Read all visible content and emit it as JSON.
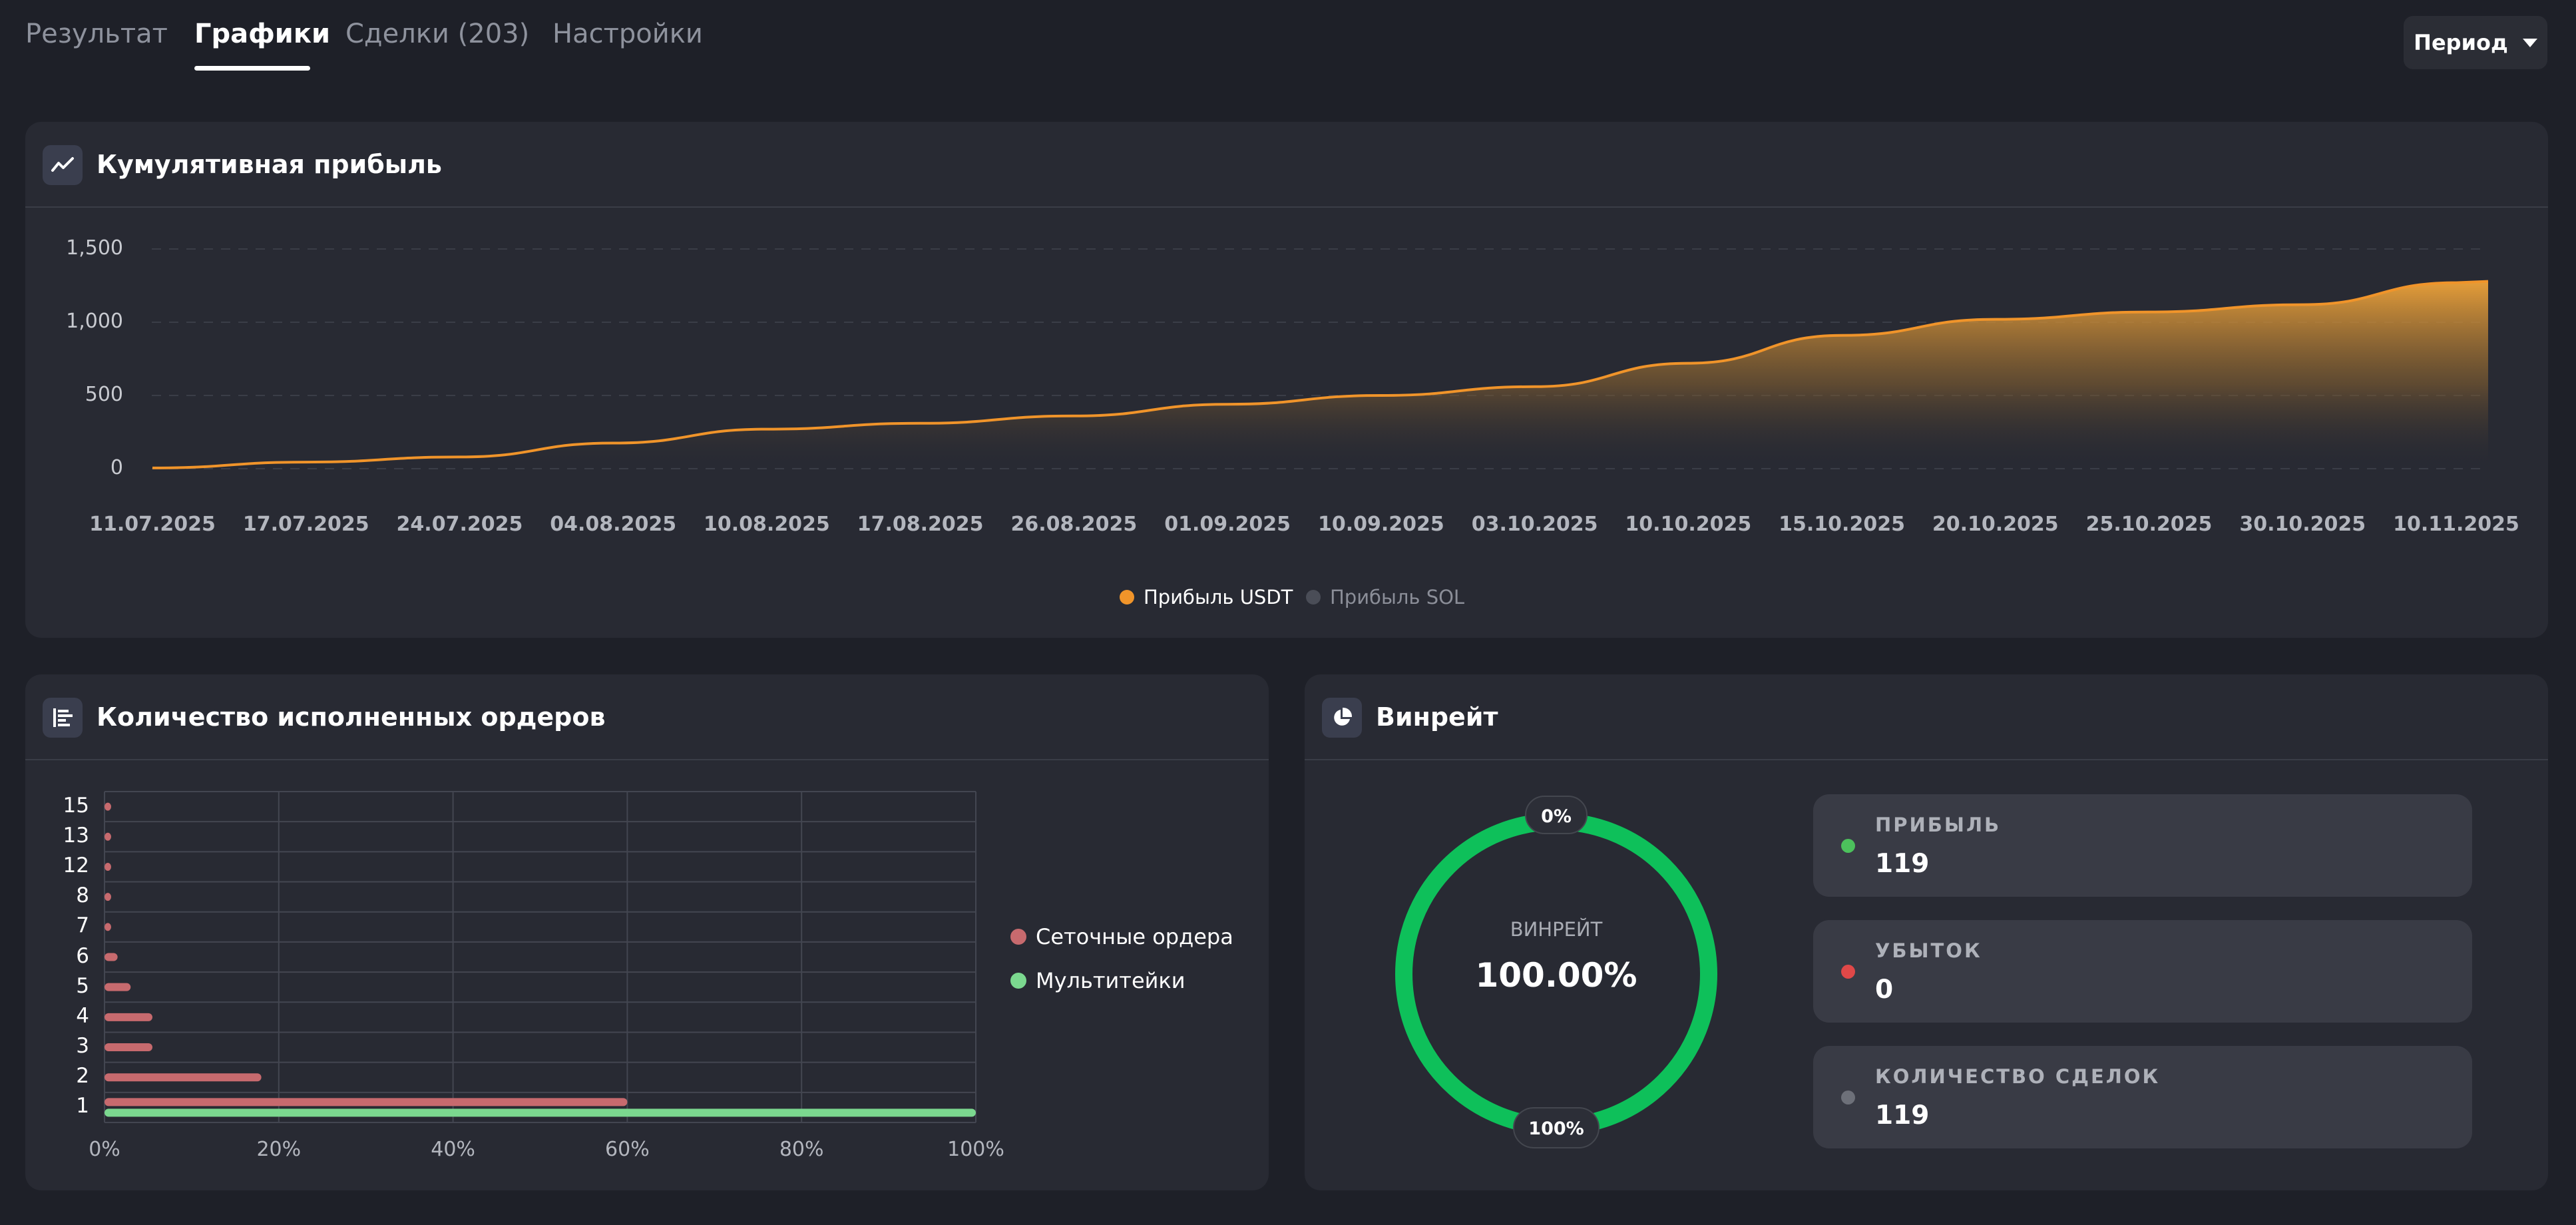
{
  "tabs": [
    {
      "label": "Результат"
    },
    {
      "label": "Графики"
    },
    {
      "label": "Сделки (203)"
    },
    {
      "label": "Настройки"
    }
  ],
  "active_tab": "Графики",
  "period_button": {
    "label": "Период"
  },
  "colors": {
    "accent_orange": "#f0942a",
    "bar_red": "#c76a6e",
    "bar_green": "#7bd88f",
    "win_green": "#0ec05a",
    "loss_red": "#e04848",
    "neutral_gray": "#6d7079"
  },
  "cumulative_panel": {
    "title": "Кумулятивная прибыль",
    "icon": "trend-line-icon",
    "legend": [
      {
        "label": "Прибыль USDT",
        "color": "#f0942a",
        "active": true
      },
      {
        "label": "Прибыль SOL",
        "color": "#4a4d57",
        "active": false
      }
    ]
  },
  "orders_panel": {
    "title": "Количество исполненных ордеров",
    "icon": "bar-list-icon",
    "legend": [
      {
        "label": "Сеточные ордера",
        "color": "#c76a6e"
      },
      {
        "label": "Мультитейки",
        "color": "#7bd88f"
      }
    ]
  },
  "winrate_panel": {
    "title": "Винрейт",
    "icon": "pie-chart-icon",
    "center_label": "ВИНРЕЙТ",
    "center_value": "100.00%",
    "top_badge": "0%",
    "bottom_badge": "100%",
    "stats": [
      {
        "label": "ПРИБЫЛЬ",
        "value": "119",
        "color": "#4cc15c"
      },
      {
        "label": "УБЫТОК",
        "value": "0",
        "color": "#e04848"
      },
      {
        "label": "КОЛИЧЕСТВО СДЕЛОК",
        "value": "119",
        "color": "#6d7079"
      }
    ]
  },
  "chart_data": [
    {
      "type": "area",
      "title": "Кумулятивная прибыль",
      "x_tick_labels": [
        "11.07.2025",
        "17.07.2025",
        "24.07.2025",
        "04.08.2025",
        "10.08.2025",
        "17.08.2025",
        "26.08.2025",
        "01.09.2025",
        "10.09.2025",
        "03.10.2025",
        "10.10.2025",
        "15.10.2025",
        "20.10.2025",
        "25.10.2025",
        "30.10.2025",
        "10.11.2025"
      ],
      "y_tick_labels": [
        "1,500",
        "1,000",
        "500",
        "0"
      ],
      "ylim": [
        0,
        1500
      ],
      "grid": true,
      "legend_position": "bottom-center",
      "series": [
        {
          "name": "Прибыль USDT",
          "values": [
            5,
            45,
            80,
            175,
            270,
            310,
            360,
            440,
            500,
            560,
            720,
            910,
            1020,
            1070,
            1120,
            1270
          ]
        },
        {
          "name": "Прибыль SOL",
          "values": []
        }
      ]
    },
    {
      "type": "bar",
      "orientation": "horizontal",
      "title": "Количество исполненных ордеров",
      "categories": [
        "15",
        "13",
        "12",
        "8",
        "7",
        "6",
        "5",
        "4",
        "3",
        "2",
        "1"
      ],
      "x_tick_labels": [
        "0%",
        "20%",
        "40%",
        "60%",
        "80%",
        "100%"
      ],
      "xlim": [
        0,
        100
      ],
      "grid": true,
      "legend_position": "right",
      "series": [
        {
          "name": "Сеточные ордера",
          "values": [
            0.5,
            0.5,
            0.5,
            0.5,
            0.5,
            1.5,
            3,
            5.5,
            5.5,
            18,
            60
          ]
        },
        {
          "name": "Мультитейки",
          "values": [
            0,
            0,
            0,
            0,
            0,
            0,
            0,
            0,
            0,
            0,
            100
          ]
        }
      ]
    },
    {
      "type": "pie",
      "title": "Винрейт",
      "categories": [
        "Прибыль",
        "Убыток"
      ],
      "values": [
        119,
        0
      ],
      "center_value": "100.00%"
    }
  ]
}
